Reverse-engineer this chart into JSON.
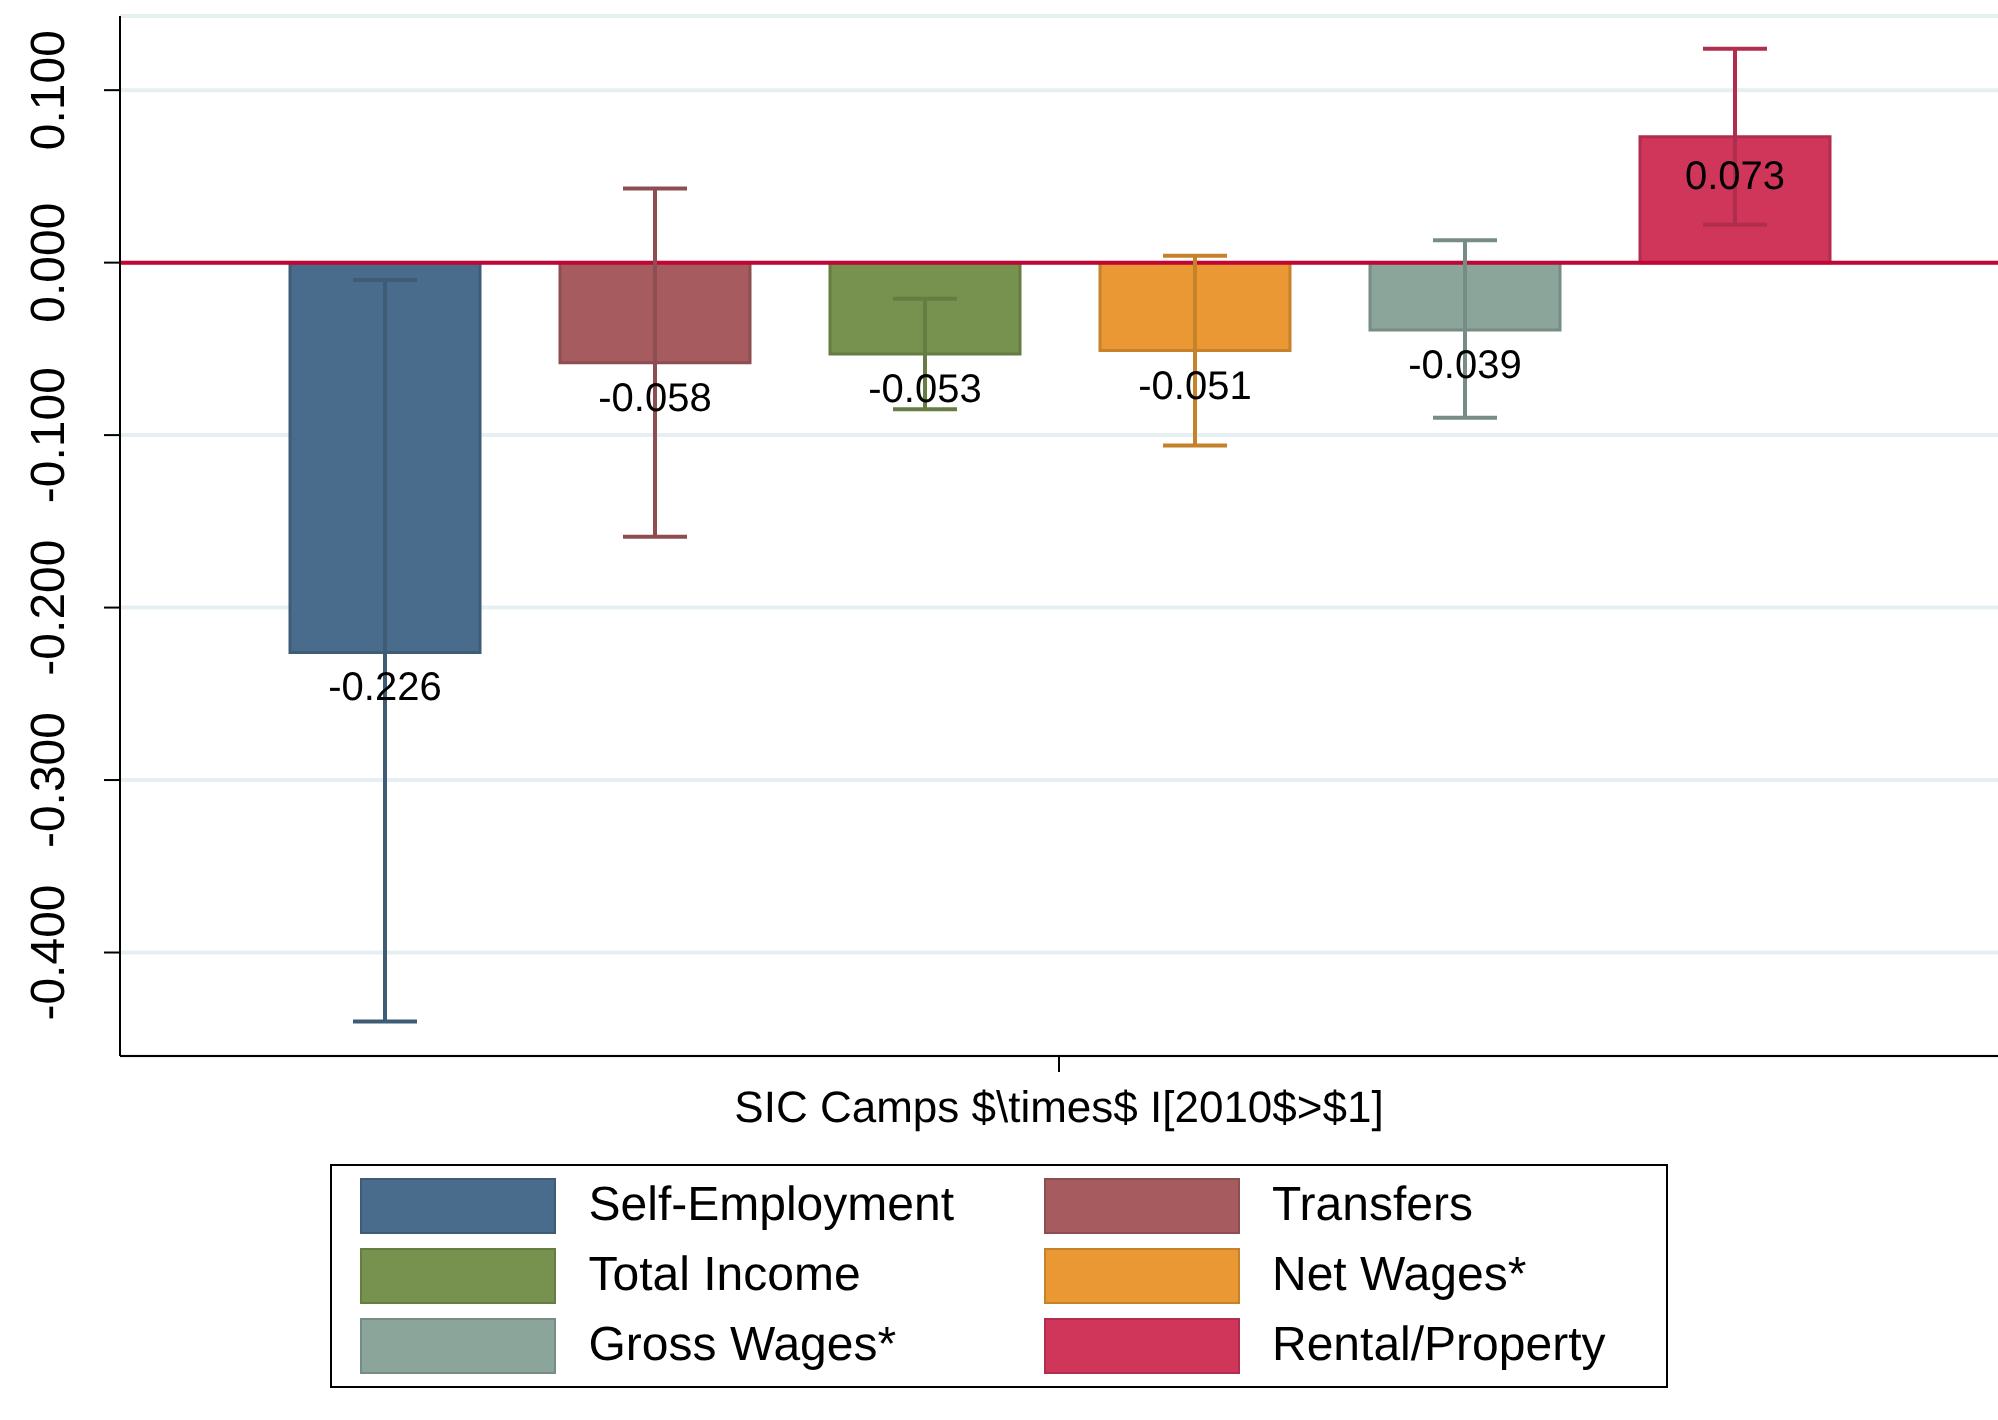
{
  "chart_data": {
    "type": "bar",
    "xlabel": "SIC Camps $\\times$ I[2010$>$1]",
    "categories": [
      null
    ],
    "series": [
      {
        "name": "Self-Employment",
        "color": "#4a6c8c",
        "values": [
          -0.226
        ],
        "errors": [
          [
            -0.44,
            -0.01
          ]
        ]
      },
      {
        "name": "Transfers",
        "color": "#a65c5f",
        "values": [
          -0.058
        ],
        "errors": [
          [
            -0.159,
            0.043
          ]
        ]
      },
      {
        "name": "Total Income",
        "color": "#77924f",
        "values": [
          -0.053
        ],
        "errors": [
          [
            -0.085,
            -0.021
          ]
        ]
      },
      {
        "name": "Net Wages*",
        "color": "#e99833",
        "values": [
          -0.051
        ],
        "errors": [
          [
            -0.106,
            0.004
          ]
        ]
      },
      {
        "name": "Gross Wages*",
        "color": "#8ca59b",
        "values": [
          -0.039
        ],
        "errors": [
          [
            -0.09,
            0.013
          ]
        ]
      },
      {
        "name": "Rental/Property",
        "color": "#cf365a",
        "values": [
          0.073
        ],
        "errors": [
          [
            0.022,
            0.124
          ]
        ]
      }
    ],
    "ylim": [
      -0.46,
      0.143
    ],
    "yticks": [
      {
        "value": 0.1,
        "label": "0.100"
      },
      {
        "value": 0,
        "label": "0.000"
      },
      {
        "value": -0.1,
        "label": "-0.100"
      },
      {
        "value": -0.2,
        "label": "-0.200"
      },
      {
        "value": -0.3,
        "label": "-0.300"
      },
      {
        "value": -0.4,
        "label": "-0.400"
      }
    ],
    "grid": "y",
    "data_labels": true,
    "legend": "bottom",
    "ref_lines": [
      {
        "axis": "y",
        "value": 0,
        "color": "#c10534"
      }
    ]
  }
}
